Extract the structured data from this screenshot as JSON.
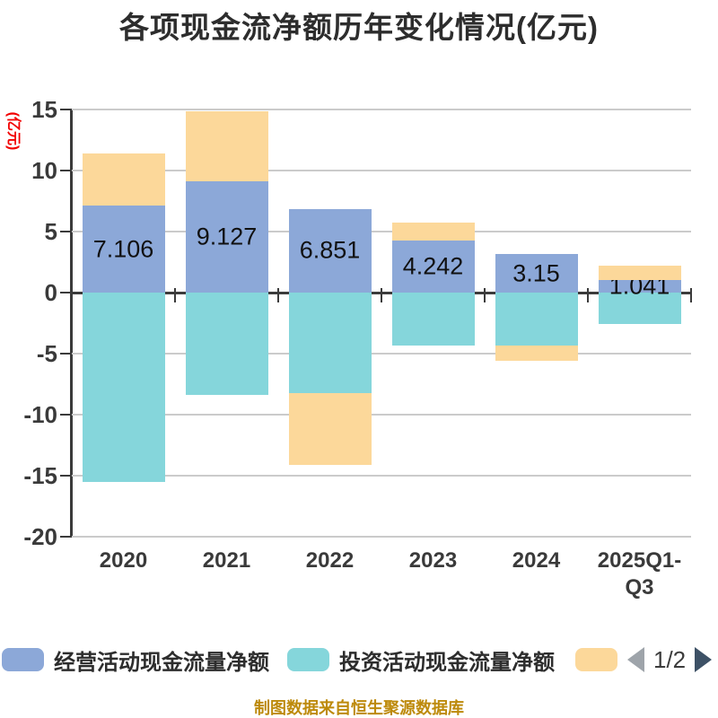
{
  "title": "各项现金流净额历年变化情况(亿元)",
  "y_axis": {
    "name": "(亿元)",
    "name_color": "#f20000",
    "tick_values": [
      15,
      10,
      5,
      0,
      -5,
      -10,
      -15,
      -20
    ],
    "tick_labels": [
      "15",
      "10",
      "5",
      "0",
      "-5",
      "-10",
      "-15",
      "-20"
    ]
  },
  "chart_data": {
    "type": "bar",
    "stacked": true,
    "title": "各项现金流净额历年变化情况(亿元)",
    "unit": "亿元",
    "categories": [
      "2020",
      "2021",
      "2022",
      "2023",
      "2024",
      "2025Q1-Q3"
    ],
    "series": [
      {
        "name": "经营活动现金流量净额",
        "color": "#8ca8d8",
        "values": [
          7.106,
          9.127,
          6.851,
          4.242,
          3.15,
          1.041
        ],
        "data_labels": [
          "7.106",
          "9.127",
          "6.851",
          "4.242",
          "3.15",
          "1.041"
        ]
      },
      {
        "name": "投资活动现金流量净额",
        "color": "#85d6db",
        "values": [
          -15.5,
          -8.4,
          -8.2,
          -4.3,
          -4.3,
          -2.6
        ],
        "note": "values estimated from gridlines; no data labels shown"
      },
      {
        "name": "",
        "color": "#fcd89a",
        "values": [
          4.3,
          5.7,
          -5.9,
          1.5,
          -1.3,
          1.2
        ],
        "note": "legend label hidden on page 2/2; values estimated from gridlines"
      }
    ],
    "ylim": [
      -20,
      15
    ],
    "y_tick_step": 5,
    "grid": true,
    "legend_position": "bottom"
  },
  "legend": {
    "items": [
      {
        "label": "经营活动现金流量净额",
        "color": "#8ca8d8"
      },
      {
        "label": "投资活动现金流量净额",
        "color": "#85d6db"
      },
      {
        "label": "",
        "color": "#fcd89a"
      }
    ],
    "pager": {
      "label": "1/2"
    }
  },
  "caption": {
    "text": "制图数据来自恒生聚源数据库",
    "color": "#bd8a0b"
  },
  "colors": {
    "series_operating": "#8ca8d8",
    "series_investing": "#85d6db",
    "series_financing": "#fcd89a",
    "gridline": "#cbcbcb",
    "axis": "#3b3b3b",
    "title_text": "#2d2d2d",
    "tick_text": "#3a3a3a",
    "data_label_text": "#111111",
    "y_axis_name": "#f20000",
    "caption_text": "#bd8a0b",
    "pager_prev_arrow": "#9ea4aa",
    "pager_next_arrow": "#3d5166"
  }
}
